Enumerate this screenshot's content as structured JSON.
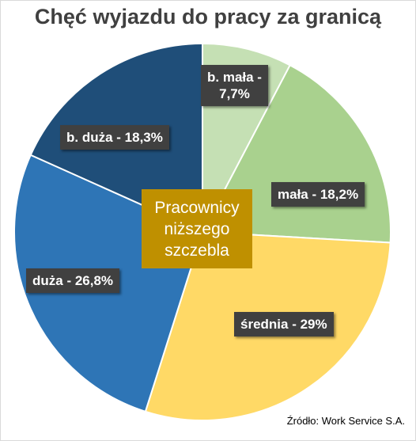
{
  "chart_data": {
    "type": "pie",
    "title": "Chęć wyjazdu do pracy za granicą",
    "slices": [
      {
        "label_lines": [
          "b. mała -",
          "7,7%"
        ],
        "value": 7.7,
        "color": "#c5e0b4"
      },
      {
        "label_lines": [
          "mała - 18,2%"
        ],
        "value": 18.2,
        "color": "#a9d18e"
      },
      {
        "label_lines": [
          "średnia - 29%"
        ],
        "value": 29,
        "color": "#ffd966"
      },
      {
        "label_lines": [
          "duża - 26,8%"
        ],
        "value": 26.8,
        "color": "#2e75b6"
      },
      {
        "label_lines": [
          "b. duża - 18,3%"
        ],
        "value": 18.3,
        "color": "#1f4e79"
      }
    ],
    "center_label": [
      "Pracownicy",
      "niższego",
      "szczebla"
    ],
    "source": "Źródło: Work Service S.A."
  }
}
